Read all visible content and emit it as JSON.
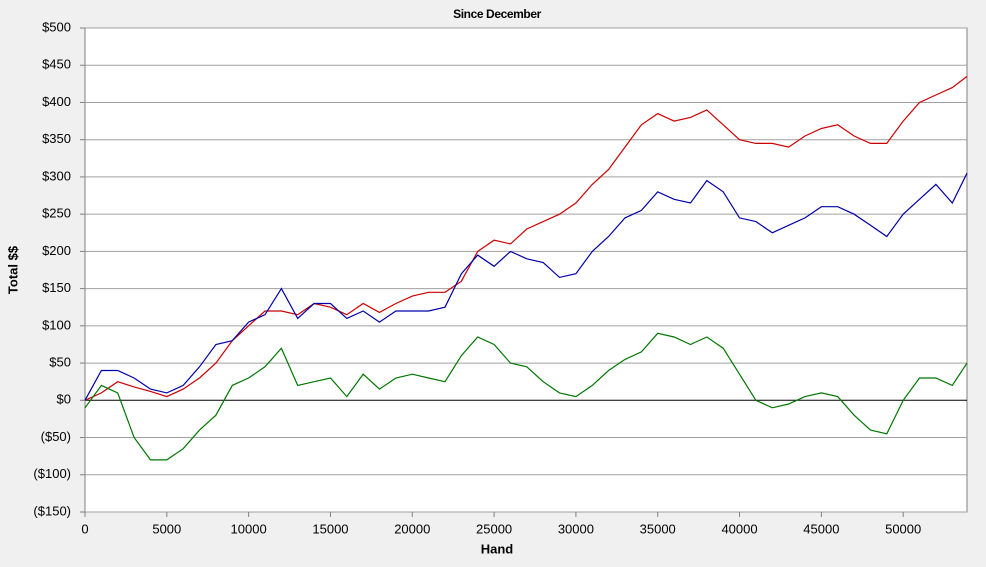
{
  "chart_data": {
    "type": "line",
    "title": "Since December",
    "x_label": "Hand",
    "y_label": "Total $$",
    "x": [
      0,
      1000,
      2000,
      3000,
      4000,
      5000,
      6000,
      7000,
      8000,
      9000,
      10000,
      11000,
      12000,
      13000,
      14000,
      15000,
      16000,
      17000,
      18000,
      19000,
      20000,
      21000,
      22000,
      23000,
      24000,
      25000,
      26000,
      27000,
      28000,
      29000,
      30000,
      31000,
      32000,
      33000,
      34000,
      35000,
      36000,
      37000,
      38000,
      39000,
      40000,
      41000,
      42000,
      43000,
      44000,
      45000,
      46000,
      47000,
      48000,
      49000,
      50000,
      51000,
      52000,
      53000,
      53900
    ],
    "series": [
      {
        "color": "#cc0000",
        "values": [
          0,
          10,
          25,
          18,
          12,
          5,
          15,
          30,
          50,
          80,
          100,
          120,
          120,
          115,
          130,
          125,
          115,
          130,
          118,
          130,
          140,
          145,
          145,
          160,
          200,
          215,
          210,
          230,
          240,
          250,
          265,
          290,
          310,
          340,
          370,
          385,
          375,
          380,
          390,
          370,
          350,
          345,
          345,
          340,
          355,
          365,
          370,
          355,
          345,
          345,
          375,
          400,
          410,
          420,
          435
        ]
      },
      {
        "color": "#0000aa",
        "values": [
          0,
          40,
          40,
          30,
          15,
          10,
          20,
          45,
          75,
          80,
          105,
          115,
          150,
          110,
          130,
          130,
          110,
          120,
          105,
          120,
          120,
          120,
          125,
          170,
          195,
          180,
          200,
          190,
          185,
          165,
          170,
          200,
          220,
          245,
          255,
          280,
          270,
          265,
          295,
          280,
          245,
          240,
          225,
          235,
          245,
          260,
          260,
          250,
          235,
          220,
          250,
          270,
          290,
          265,
          305
        ]
      },
      {
        "color": "#007700",
        "values": [
          -10,
          20,
          10,
          -50,
          -80,
          -80,
          -65,
          -40,
          -20,
          20,
          30,
          45,
          70,
          20,
          25,
          30,
          5,
          35,
          15,
          30,
          35,
          30,
          25,
          60,
          85,
          75,
          50,
          45,
          25,
          10,
          5,
          20,
          40,
          55,
          65,
          90,
          85,
          75,
          85,
          70,
          35,
          0,
          -10,
          -5,
          5,
          10,
          5,
          -20,
          -40,
          -45,
          0,
          30,
          30,
          20,
          50
        ]
      }
    ],
    "xlim": [
      0,
      53900
    ],
    "xticks": [
      0,
      5000,
      10000,
      15000,
      20000,
      25000,
      30000,
      35000,
      40000,
      45000,
      50000
    ],
    "ylim": [
      -150,
      500
    ],
    "yticks": [
      {
        "value": -150,
        "label": "($150)"
      },
      {
        "value": -100,
        "label": "($100)"
      },
      {
        "value": -50,
        "label": "($50)"
      },
      {
        "value": 0,
        "label": "$0"
      },
      {
        "value": 50,
        "label": "$50"
      },
      {
        "value": 100,
        "label": "$100"
      },
      {
        "value": 150,
        "label": "$150"
      },
      {
        "value": 200,
        "label": "$200"
      },
      {
        "value": 250,
        "label": "$250"
      },
      {
        "value": 300,
        "label": "$300"
      },
      {
        "value": 350,
        "label": "$350"
      },
      {
        "value": 400,
        "label": "$400"
      },
      {
        "value": 450,
        "label": "$450"
      },
      {
        "value": 500,
        "label": "$500"
      }
    ],
    "grid": true
  }
}
